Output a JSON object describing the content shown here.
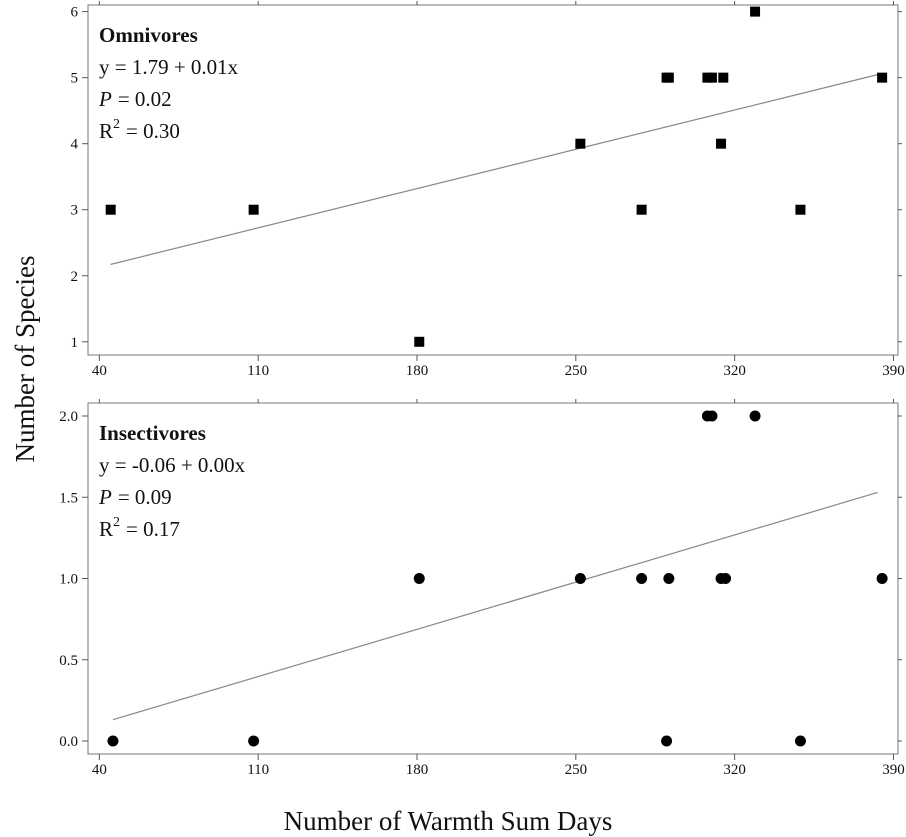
{
  "chart_data": [
    {
      "type": "scatter",
      "panel_label": "Omnivores",
      "equation": "y = 1.79 + 0.01x",
      "p_label": "P",
      "p_value": "= 0.02",
      "r2_label": "R",
      "r2_sup": "2",
      "r2_value": "= 0.30",
      "marker": "square",
      "xlim": [
        35,
        392
      ],
      "ylim": [
        0.8,
        6.1
      ],
      "xticks": [
        40,
        110,
        180,
        250,
        320,
        390
      ],
      "yticks": [
        1,
        2,
        3,
        4,
        5,
        6
      ],
      "ytick_labels": [
        "1",
        "2",
        "3",
        "4",
        "5",
        "6"
      ],
      "x": [
        45,
        108,
        181,
        252,
        279,
        290,
        291,
        308,
        310,
        314,
        315,
        329,
        349,
        385
      ],
      "y": [
        3,
        3,
        1,
        4,
        3,
        5,
        5,
        5,
        5,
        4,
        5,
        6,
        3,
        5
      ],
      "fit": {
        "intercept": 1.79,
        "slope": 0.0085,
        "x_range": [
          45,
          385
        ]
      }
    },
    {
      "type": "scatter",
      "panel_label": "Insectivores",
      "equation": "y = -0.06 + 0.00x",
      "p_label": "P",
      "p_value": "= 0.09",
      "r2_label": "R",
      "r2_sup": "2",
      "r2_value": "= 0.17",
      "marker": "circle",
      "xlim": [
        35,
        392
      ],
      "ylim": [
        -0.08,
        2.08
      ],
      "xticks": [
        40,
        110,
        180,
        250,
        320,
        390
      ],
      "yticks": [
        0,
        0.5,
        1,
        1.5,
        2
      ],
      "ytick_labels": [
        "0.0",
        "0.5",
        "1.0",
        "1.5",
        "2.0"
      ],
      "x": [
        46,
        108,
        181,
        252,
        279,
        290,
        291,
        308,
        310,
        314,
        316,
        329,
        349,
        385
      ],
      "y": [
        0,
        0,
        1,
        1,
        1,
        0,
        1,
        2,
        2,
        1,
        1,
        2,
        0,
        1
      ],
      "fit": {
        "intercept": -0.06,
        "slope": 0.00415,
        "x_range": [
          46,
          383
        ]
      }
    }
  ],
  "xlabel": "Number of Warmth Sum Days",
  "ylabel": "Number of Species"
}
